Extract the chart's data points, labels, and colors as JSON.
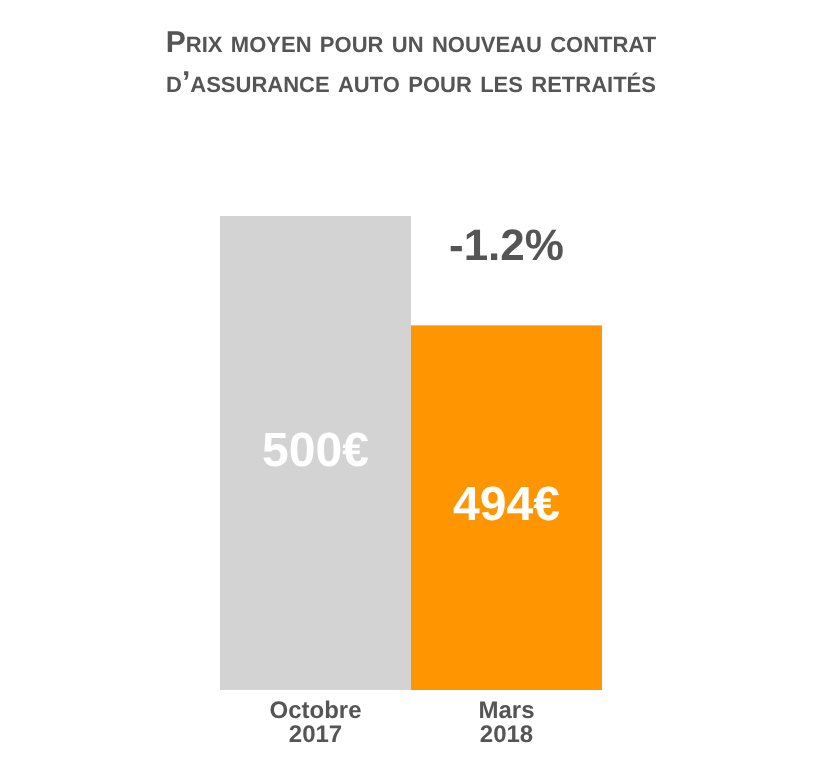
{
  "chart_data": {
    "type": "bar",
    "title": "Prix moyen pour un nouveau contrat\nd’assurance auto pour les retraités",
    "categories": [
      "Octobre 2017",
      "Mars 2018"
    ],
    "values": [
      500,
      494
    ],
    "colors": [
      "#d3d3d3",
      "#ff9500"
    ],
    "value_labels": [
      "500€",
      "494€"
    ],
    "ylim": [
      474,
      500
    ],
    "annotations": [
      "-1.2%"
    ]
  }
}
